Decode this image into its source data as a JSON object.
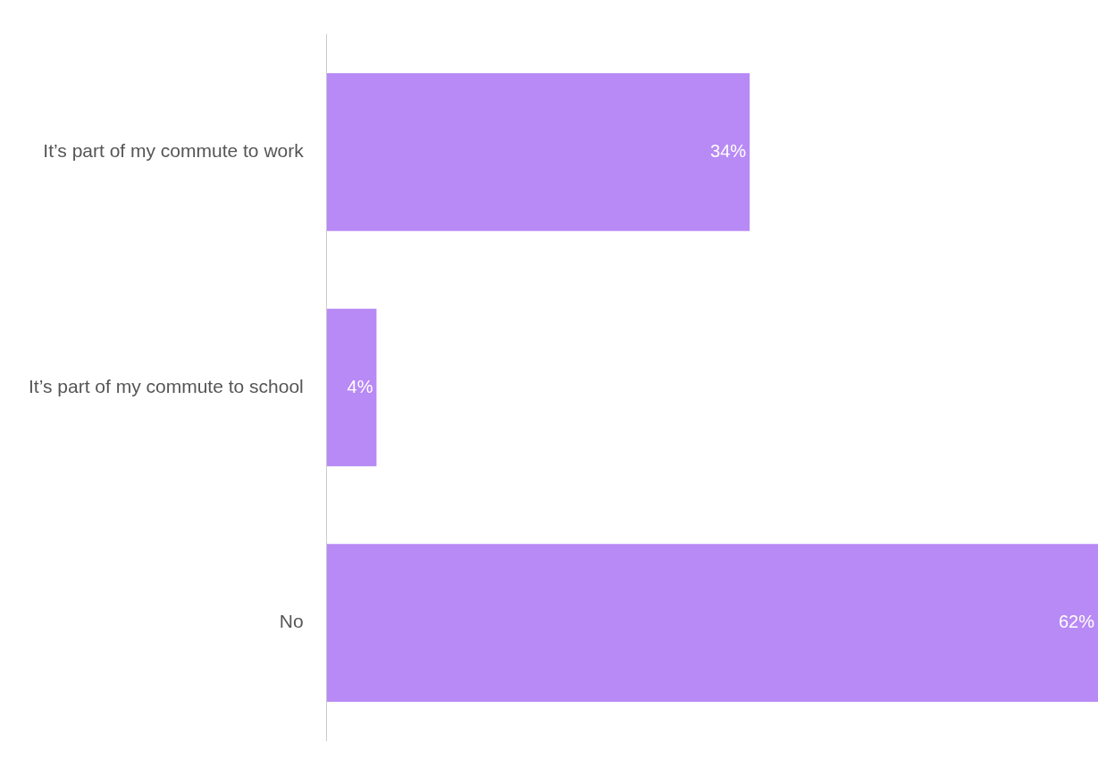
{
  "chart_data": {
    "type": "bar",
    "orientation": "horizontal",
    "categories": [
      "It’s part of my commute to work",
      "It’s part of my commute to school",
      "No"
    ],
    "values": [
      34,
      4,
      62
    ],
    "value_labels": [
      "34%",
      "4%",
      "62%"
    ],
    "color": "#b88af5",
    "legend": false
  }
}
